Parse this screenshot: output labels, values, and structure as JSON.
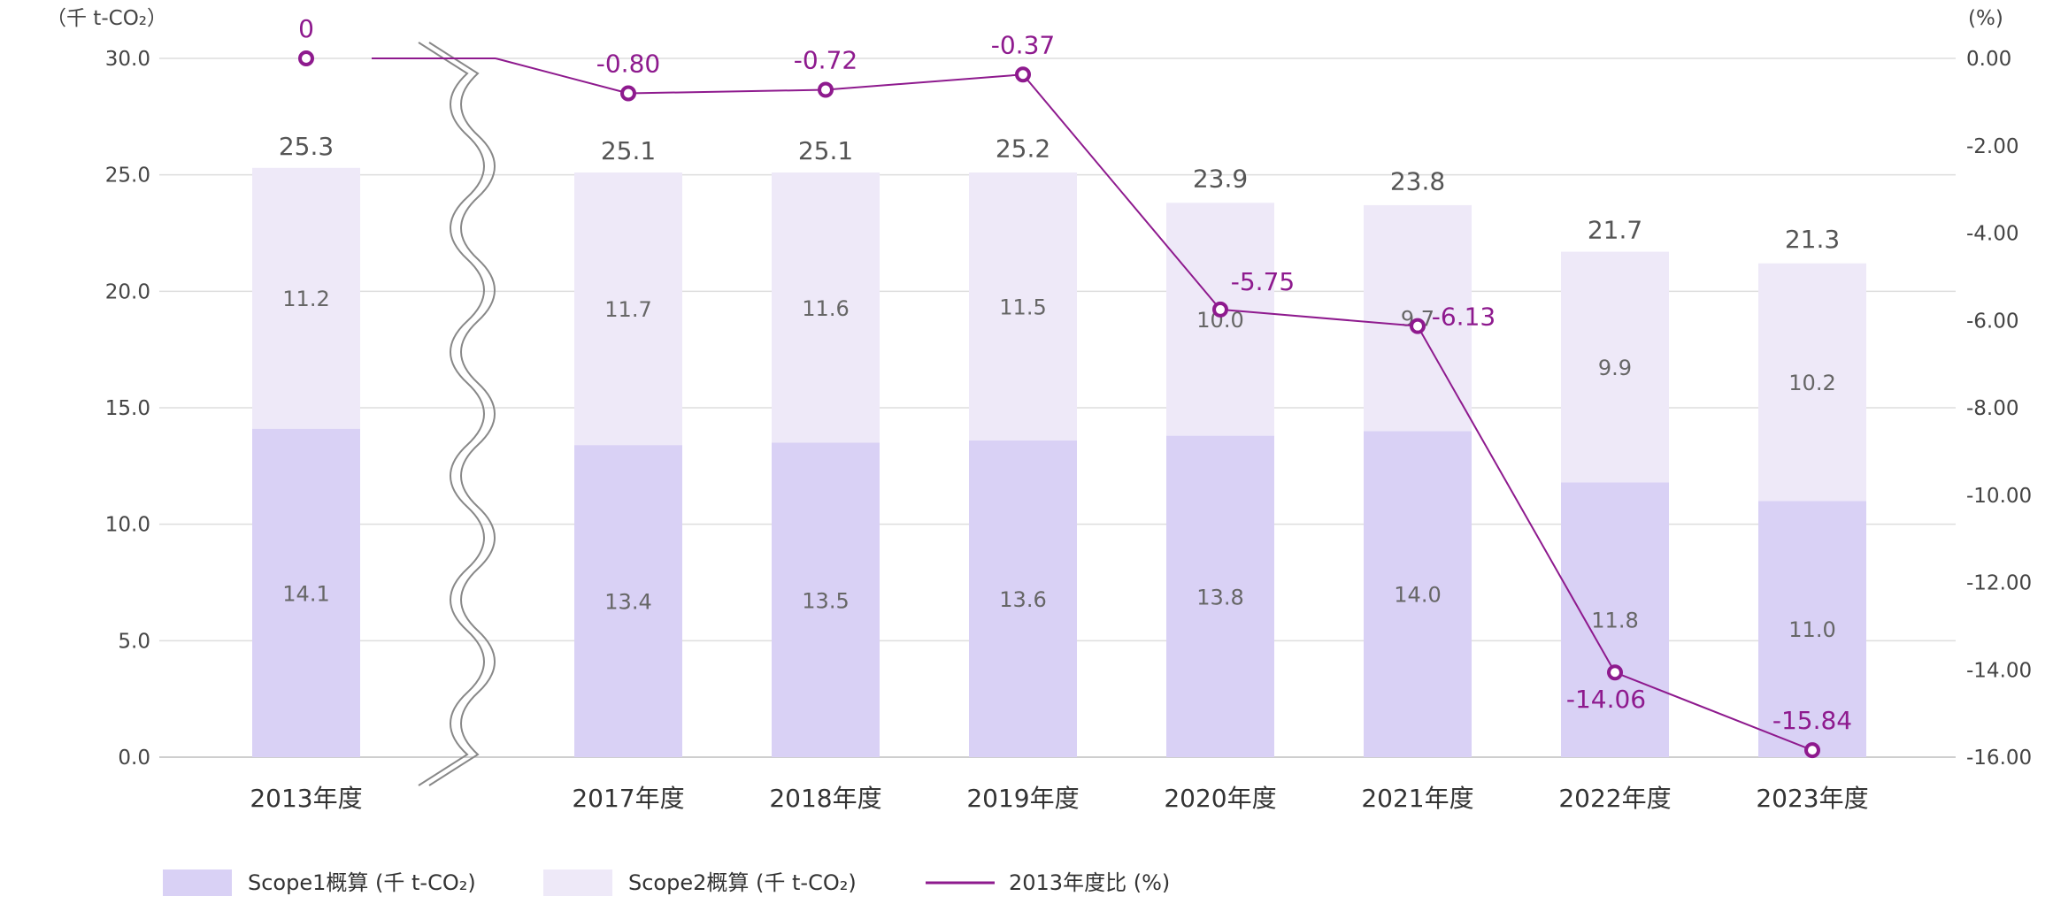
{
  "chart_data": {
    "type": "bar",
    "stacked": true,
    "categories": [
      "2013年度",
      "2017年度",
      "2018年度",
      "2019年度",
      "2020年度",
      "2021年度",
      "2022年度",
      "2023年度"
    ],
    "series": [
      {
        "name": "Scope1概算 (千 t-CO₂)",
        "values": [
          14.1,
          13.4,
          13.5,
          13.6,
          13.8,
          14.0,
          11.8,
          11.0
        ],
        "color": "#d9d1f5"
      },
      {
        "name": "Scope2概算 (千 t-CO₂)",
        "values": [
          11.2,
          11.7,
          11.6,
          11.5,
          10.0,
          9.7,
          9.9,
          10.2
        ],
        "color": "#eee9f8"
      }
    ],
    "totals": [
      25.3,
      25.1,
      25.1,
      25.2,
      23.9,
      23.8,
      21.7,
      21.3
    ],
    "line": {
      "name": "2013年度比 (%)",
      "values": [
        0,
        -0.8,
        -0.72,
        -0.37,
        -5.75,
        -6.13,
        -14.06,
        -15.84
      ],
      "labels": [
        "0",
        "-0.80",
        "-0.72",
        "-0.37",
        "-5.75",
        "-6.13",
        "-14.06",
        "-15.84"
      ],
      "color": "#8e1a8e"
    },
    "y_left": {
      "unit": "（千 t-CO₂）",
      "min": 0,
      "max": 30,
      "ticks": [
        "0.0",
        "5.0",
        "10.0",
        "15.0",
        "20.0",
        "25.0",
        "30.0"
      ]
    },
    "y_right": {
      "unit": "(%)",
      "min": -16,
      "max": 0,
      "ticks": [
        "0.00",
        "-2.00",
        "-4.00",
        "-6.00",
        "-8.00",
        "-10.00",
        "-12.00",
        "-14.00",
        "-16.00"
      ]
    },
    "grid": true,
    "axis_break": "between 2013年度 and 2017年度",
    "legend_position": "bottom-left"
  }
}
